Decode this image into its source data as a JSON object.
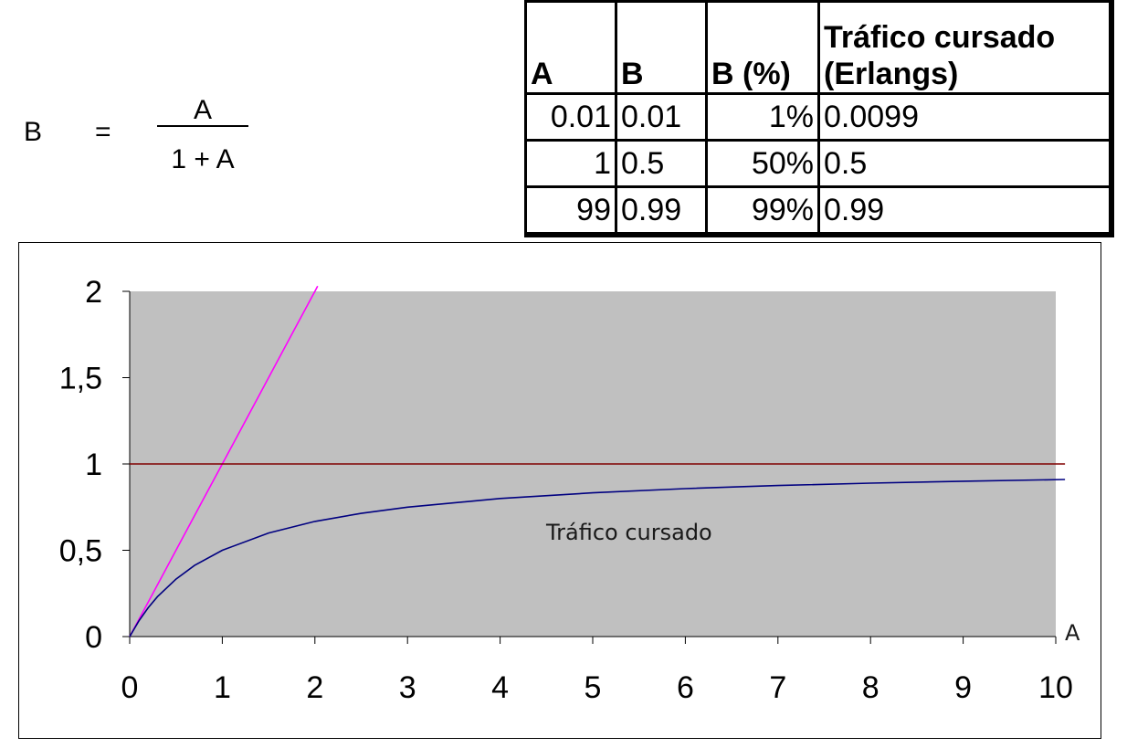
{
  "formula": {
    "lhs": "B",
    "equals": "=",
    "numerator": "A",
    "denominator": "1 + A"
  },
  "table": {
    "headers": [
      "A",
      "B",
      "B (%)",
      "Tráfico cursado",
      "(Erlangs)"
    ],
    "rows": [
      [
        "0.01",
        "0.01",
        "1%",
        "0.0099"
      ],
      [
        "1",
        "0.5",
        "50%",
        "0.5"
      ],
      [
        "99",
        "0.99",
        "99%",
        "0.99"
      ]
    ]
  },
  "chart_data": {
    "type": "line",
    "xlabel": "A",
    "ylabel": "",
    "xlim": [
      0,
      10
    ],
    "ylim": [
      0,
      2
    ],
    "x_ticks": [
      "0",
      "1",
      "2",
      "3",
      "4",
      "5",
      "6",
      "7",
      "8",
      "9",
      "10"
    ],
    "y_ticks": [
      "0",
      "0,5",
      "1",
      "1,5",
      "2"
    ],
    "plot_background": "#c0c0c0",
    "annotations": [
      "Tráfico cursado"
    ],
    "series": [
      {
        "color": "#ff00ff",
        "x": [
          0,
          0.2,
          0.4,
          0.6,
          0.8,
          1.0,
          1.2,
          1.4,
          1.6,
          1.8,
          2.0,
          2.03
        ],
        "y": [
          0,
          0.2,
          0.4,
          0.6,
          0.8,
          1.0,
          1.2,
          1.4,
          1.6,
          1.8,
          2.0,
          2.03
        ]
      },
      {
        "color": "#800000",
        "x": [
          0,
          10.1
        ],
        "y": [
          1,
          1
        ]
      },
      {
        "color": "#000080",
        "x": [
          0,
          0.1,
          0.2,
          0.3,
          0.5,
          0.7,
          1.0,
          1.5,
          2.0,
          2.5,
          3.0,
          4.0,
          5.0,
          6.0,
          7.0,
          8.0,
          9.0,
          10.1
        ],
        "y": [
          0,
          0.091,
          0.167,
          0.231,
          0.333,
          0.412,
          0.5,
          0.6,
          0.667,
          0.714,
          0.75,
          0.8,
          0.833,
          0.857,
          0.875,
          0.889,
          0.9,
          0.91
        ]
      }
    ]
  }
}
